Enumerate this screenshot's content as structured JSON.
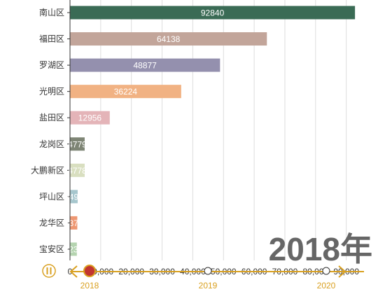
{
  "chart_data": {
    "type": "bar",
    "orientation": "horizontal",
    "categories": [
      "南山区",
      "福田区",
      "罗湖区",
      "光明区",
      "盐田区",
      "龙岗区",
      "大鹏新区",
      "坪山区",
      "龙华区",
      "宝安区"
    ],
    "values": [
      92840,
      64138,
      48877,
      36224,
      12956,
      4779,
      4778,
      2499,
      2371,
      2237
    ],
    "bar_colors": [
      "#3a6b55",
      "#c2a59a",
      "#9490ae",
      "#f1b283",
      "#e4b4b8",
      "#7e8575",
      "#d9dfc0",
      "#a6c6cd",
      "#ee9772",
      "#b5d4b0"
    ],
    "xlim": [
      0,
      100000
    ],
    "x_ticks": [
      "0",
      "10,000",
      "20,000",
      "30,000",
      "40,000",
      "50,000",
      "60,000",
      "70,000",
      "80,000",
      "90,000"
    ],
    "x_tick_values": [
      0,
      10000,
      20000,
      30000,
      40000,
      50000,
      60000,
      70000,
      80000,
      90000
    ],
    "grid": true,
    "current_period": "2018年"
  },
  "timeline": {
    "years": [
      "2018",
      "2019",
      "2020"
    ],
    "selected": "2018",
    "accent_color": "#d9a020",
    "play_button_icon": "pause-icon"
  }
}
